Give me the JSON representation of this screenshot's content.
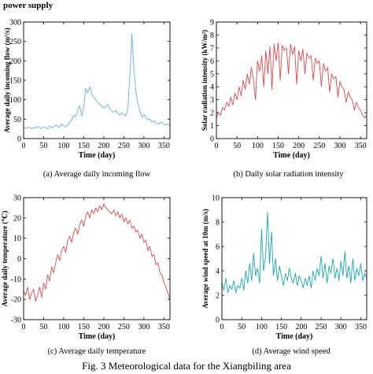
{
  "page_title": "power supply",
  "figure_caption": "Fig. 3 Meteorological data for the Xiangbiling area",
  "colors": {
    "flow": "#6aaee0",
    "solar": "#e0484c",
    "temperature": "#e0484c",
    "wind": "#1aa6b6",
    "axis": "#000000"
  },
  "chart_data": [
    {
      "id": "a",
      "type": "line",
      "caption": "(a) Average daily incoming flow",
      "xlabel": "Time (day)",
      "ylabel": "Average daily incoming flow (m³/s)",
      "xlim": [
        0,
        365
      ],
      "ylim": [
        0,
        300
      ],
      "xticks": [
        0,
        50,
        100,
        150,
        200,
        250,
        300,
        350
      ],
      "yticks": [
        0,
        50,
        100,
        150,
        200,
        250,
        300
      ],
      "series": [
        {
          "color": "#6aaee0",
          "x_start": 0,
          "x_step": 5,
          "values": [
            30,
            26,
            28,
            29,
            25,
            29,
            27,
            32,
            28,
            26,
            30,
            29,
            25,
            33,
            28,
            30,
            35,
            32,
            29,
            38,
            33,
            30,
            36,
            42,
            48,
            60,
            56,
            72,
            85,
            58,
            80,
            130,
            118,
            133,
            115,
            106,
            100,
            92,
            88,
            84,
            78,
            82,
            88,
            76,
            70,
            68,
            72,
            65,
            60,
            66,
            62,
            58,
            78,
            160,
            270,
            180,
            120,
            90,
            72,
            55,
            62,
            55,
            48,
            50,
            42,
            46,
            40,
            38,
            40,
            42,
            36,
            35,
            38,
            33
          ]
        }
      ]
    },
    {
      "id": "b",
      "type": "line",
      "caption": "(b) Daily solar radiation intensity",
      "xlabel": "Time (day)",
      "ylabel": "Solar radiation intensity (kW/m²)",
      "xlim": [
        0,
        365
      ],
      "ylim": [
        0,
        9
      ],
      "xticks": [
        0,
        50,
        100,
        150,
        200,
        250,
        300,
        350
      ],
      "yticks": [
        0,
        1,
        2,
        3,
        4,
        5,
        6,
        7,
        8,
        9
      ],
      "series": [
        {
          "color": "#e0484c",
          "x_start": 0,
          "x_step": 5,
          "values": [
            1.6,
            2.0,
            1.8,
            2.4,
            2.2,
            2.8,
            2.5,
            3.2,
            2.6,
            3.5,
            3.0,
            4.0,
            3.3,
            4.5,
            3.8,
            5.0,
            4.2,
            5.5,
            4.5,
            3.0,
            6.0,
            5.2,
            6.4,
            4.0,
            6.8,
            5.0,
            7.1,
            3.8,
            7.3,
            6.0,
            7.4,
            4.5,
            7.2,
            6.8,
            7.0,
            5.0,
            7.3,
            6.5,
            7.1,
            4.2,
            6.8,
            6.0,
            6.9,
            5.0,
            6.6,
            6.2,
            6.4,
            4.5,
            6.2,
            5.8,
            6.0,
            4.0,
            5.8,
            5.2,
            5.5,
            3.6,
            5.0,
            4.6,
            4.8,
            3.2,
            4.4,
            4.0,
            3.8,
            2.8,
            3.6,
            3.2,
            3.0,
            2.2,
            2.8,
            2.4,
            2.2,
            1.8,
            1.6,
            1.8
          ]
        }
      ]
    },
    {
      "id": "c",
      "type": "line",
      "caption": "(c) Average daily temperature",
      "xlabel": "Time (day)",
      "ylabel": "Average daily temperature (℃)",
      "xlim": [
        0,
        365
      ],
      "ylim": [
        -30,
        30
      ],
      "xticks": [
        0,
        50,
        100,
        150,
        200,
        250,
        300,
        350
      ],
      "yticks": [
        -30,
        -20,
        -10,
        0,
        10,
        20,
        30
      ],
      "series": [
        {
          "color": "#e0484c",
          "x_start": 0,
          "x_step": 5,
          "values": [
            -16,
            -18,
            -14,
            -20,
            -17,
            -15,
            -21,
            -18,
            -14,
            -19,
            -12,
            -15,
            -8,
            -11,
            -4,
            -7,
            -2,
            2,
            -1,
            4,
            6,
            3,
            9,
            11,
            8,
            13,
            15,
            12,
            17,
            19,
            16,
            21,
            23,
            20,
            24,
            22,
            25,
            23,
            26,
            24,
            27,
            25,
            24,
            23,
            22,
            24,
            21,
            23,
            20,
            22,
            18,
            20,
            17,
            19,
            15,
            16,
            13,
            14,
            10,
            12,
            8,
            9,
            4,
            6,
            1,
            2,
            -3,
            -2,
            -7,
            -8,
            -12,
            -14,
            -17,
            -20
          ]
        }
      ]
    },
    {
      "id": "d",
      "type": "line",
      "caption": "(d) Average wind speed",
      "xlabel": "Time (day)",
      "ylabel": "Average wind speed at 10m (m/s)",
      "xlim": [
        0,
        365
      ],
      "ylim": [
        0,
        10
      ],
      "xticks": [
        0,
        50,
        100,
        150,
        200,
        250,
        300,
        350
      ],
      "yticks": [
        0,
        2,
        4,
        6,
        8,
        10
      ],
      "series": [
        {
          "color": "#1aa6b6",
          "x_start": 0,
          "x_step": 5,
          "values": [
            3.0,
            2.4,
            3.4,
            2.2,
            2.8,
            2.5,
            3.2,
            2.2,
            2.8,
            2.6,
            3.4,
            2.4,
            4.0,
            3.0,
            4.6,
            3.2,
            5.4,
            3.6,
            4.2,
            3.0,
            7.4,
            4.0,
            5.2,
            8.8,
            4.6,
            7.2,
            3.6,
            5.0,
            3.2,
            4.4,
            3.6,
            2.8,
            3.8,
            3.2,
            4.2,
            3.4,
            3.0,
            3.8,
            2.8,
            3.6,
            3.2,
            2.6,
            3.4,
            2.8,
            3.6,
            2.6,
            4.0,
            3.2,
            4.2,
            3.6,
            5.2,
            3.4,
            4.6,
            3.0,
            4.4,
            3.8,
            5.0,
            3.4,
            4.2,
            3.2,
            4.8,
            3.6,
            5.6,
            3.4,
            4.4,
            3.0,
            5.0,
            3.2,
            4.2,
            3.6,
            4.6,
            3.2,
            3.8,
            3.4
          ]
        }
      ]
    }
  ]
}
